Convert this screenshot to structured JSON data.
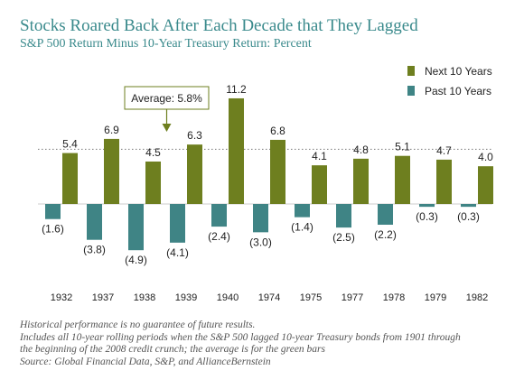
{
  "chart_data": {
    "type": "bar",
    "title": "Stocks Roared Back After Each Decade that They Lagged",
    "subtitle": "S&P 500 Return Minus 10-Year Treasury Return: Percent",
    "categories": [
      "1932",
      "1937",
      "1938",
      "1939",
      "1940",
      "1974",
      "1975",
      "1977",
      "1978",
      "1979",
      "1982"
    ],
    "series": [
      {
        "name": "Past 10 Years",
        "color": "#3f8485",
        "values": [
          -1.6,
          -3.8,
          -4.9,
          -4.1,
          -2.4,
          -3.0,
          -1.4,
          -2.5,
          -2.2,
          -0.3,
          -0.3
        ],
        "labels": [
          "(1.6)",
          "(3.8)",
          "(4.9)",
          "(4.1)",
          "(2.4)",
          "(3.0)",
          "(1.4)",
          "(2.5)",
          "(2.2)",
          "(0.3)",
          "(0.3)"
        ]
      },
      {
        "name": "Next 10 Years",
        "color": "#6e7f1f",
        "values": [
          5.4,
          6.9,
          4.5,
          6.3,
          11.2,
          6.8,
          4.1,
          4.8,
          5.1,
          4.7,
          4.0
        ],
        "labels": [
          "5.4",
          "6.9",
          "4.5",
          "6.3",
          "11.2",
          "6.8",
          "4.1",
          "4.8",
          "5.1",
          "4.7",
          "4.0"
        ]
      }
    ],
    "average": {
      "value": 5.8,
      "label": "Average: 5.8%"
    },
    "legend_position": "top-right",
    "grid": false
  },
  "notes": [
    "Historical performance is no guarantee of future results.",
    "Includes all 10-year rolling periods when the S&P 500 lagged 10-year Treasury bonds from 1901 through",
    "the beginning of the 2008 credit crunch; the average is for the green bars",
    "Source: Global Financial Data, S&P, and AllianceBernstein"
  ]
}
